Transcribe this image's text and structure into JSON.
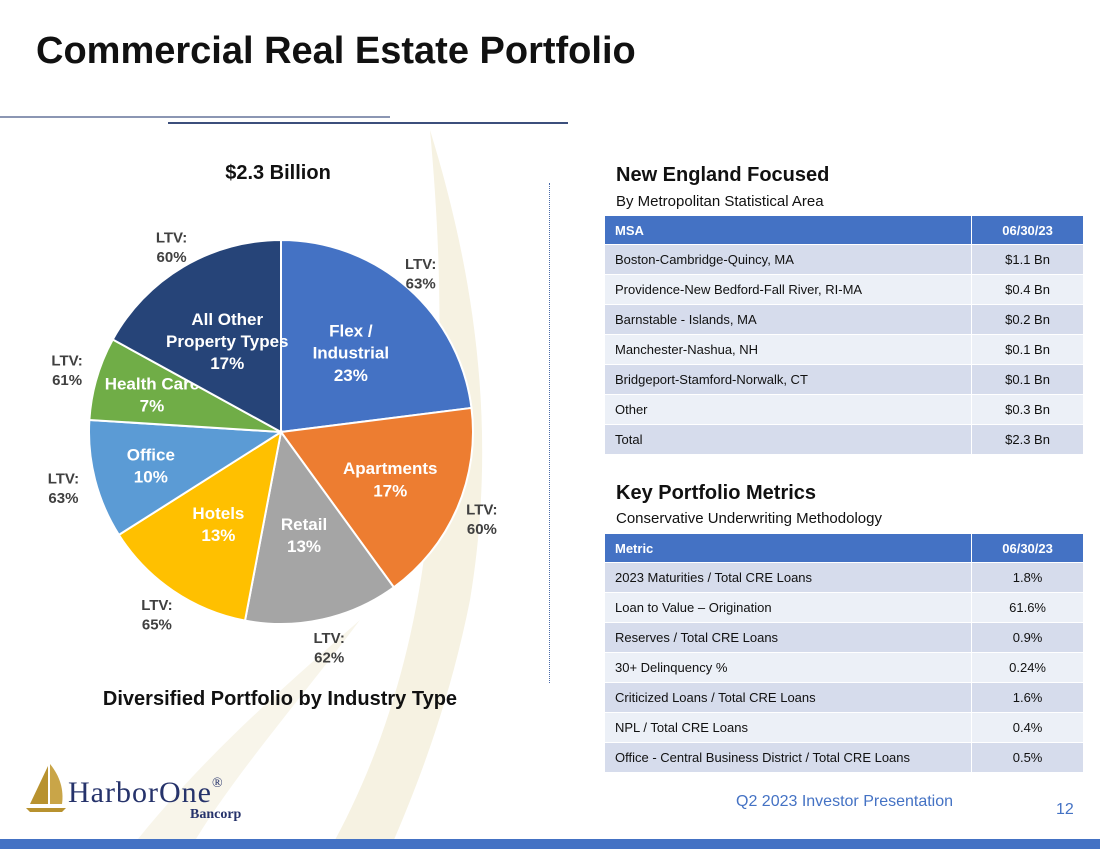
{
  "slide": {
    "title": "Commercial Real Estate Portfolio",
    "footer": "Q2 2023 Investor Presentation",
    "page_number": "12"
  },
  "chart_data": {
    "type": "pie",
    "title": "$2.3 Billion",
    "caption": "Diversified Portfolio by Industry Type",
    "slices": [
      {
        "label_lines": [
          "Flex /",
          "Industrial"
        ],
        "percent_label": "23%",
        "value": 23,
        "ltv": [
          "LTV:",
          "63%"
        ],
        "color": "#4472c4"
      },
      {
        "label_lines": [
          "Apartments"
        ],
        "percent_label": "17%",
        "value": 17,
        "ltv": [
          "LTV:",
          "60%"
        ],
        "color": "#ed7d31"
      },
      {
        "label_lines": [
          "Retail"
        ],
        "percent_label": "13%",
        "value": 13,
        "ltv": [
          "LTV:",
          "62%"
        ],
        "color": "#a5a5a5"
      },
      {
        "label_lines": [
          "Hotels"
        ],
        "percent_label": "13%",
        "value": 13,
        "ltv": [
          "LTV:",
          "65%"
        ],
        "color": "#ffc000"
      },
      {
        "label_lines": [
          "Office"
        ],
        "percent_label": "10%",
        "value": 10,
        "ltv": [
          "LTV:",
          "63%"
        ],
        "color": "#5b9bd5"
      },
      {
        "label_lines": [
          "Health Care"
        ],
        "percent_label": "7%",
        "value": 7,
        "ltv": [
          "LTV:",
          "61%"
        ],
        "color": "#70ad47"
      },
      {
        "label_lines": [
          "All Other",
          "Property Types"
        ],
        "percent_label": "17%",
        "value": 17,
        "ltv": [
          "LTV:",
          "60%"
        ],
        "color": "#264478"
      }
    ]
  },
  "msa": {
    "title": "New England Focused",
    "subtitle": "By Metropolitan Statistical Area",
    "headers": [
      "MSA",
      "06/30/23"
    ],
    "rows": [
      [
        "Boston-Cambridge-Quincy, MA",
        "$1.1 Bn"
      ],
      [
        "Providence-New Bedford-Fall River, RI-MA",
        "$0.4 Bn"
      ],
      [
        "Barnstable - Islands, MA",
        "$0.2 Bn"
      ],
      [
        "Manchester-Nashua, NH",
        "$0.1 Bn"
      ],
      [
        "Bridgeport-Stamford-Norwalk, CT",
        "$0.1 Bn"
      ],
      [
        "Other",
        "$0.3 Bn"
      ],
      [
        "Total",
        "$2.3 Bn"
      ]
    ]
  },
  "metrics": {
    "title": "Key Portfolio Metrics",
    "subtitle": "Conservative Underwriting Methodology",
    "headers": [
      "Metric",
      "06/30/23"
    ],
    "rows": [
      [
        "2023 Maturities / Total CRE Loans",
        "1.8%"
      ],
      [
        "Loan to Value – Origination",
        "61.6%"
      ],
      [
        "Reserves / Total CRE Loans",
        "0.9%"
      ],
      [
        "30+ Delinquency %",
        "0.24%"
      ],
      [
        "Criticized Loans / Total CRE Loans",
        "1.6%"
      ],
      [
        "NPL / Total CRE Loans",
        "0.4%"
      ],
      [
        "Office - Central Business District / Total CRE Loans",
        "0.5%"
      ]
    ]
  },
  "logo": {
    "name": "HarborOne",
    "registered": "®",
    "sub": "Bancorp",
    "icon": "sail-logo-icon"
  },
  "colors": {
    "accent": "#4472c4",
    "table_row_dark": "#d6dcec",
    "table_row_light": "#ecf0f7",
    "logo_navy": "#26336b",
    "logo_gold": "#b8922f"
  }
}
